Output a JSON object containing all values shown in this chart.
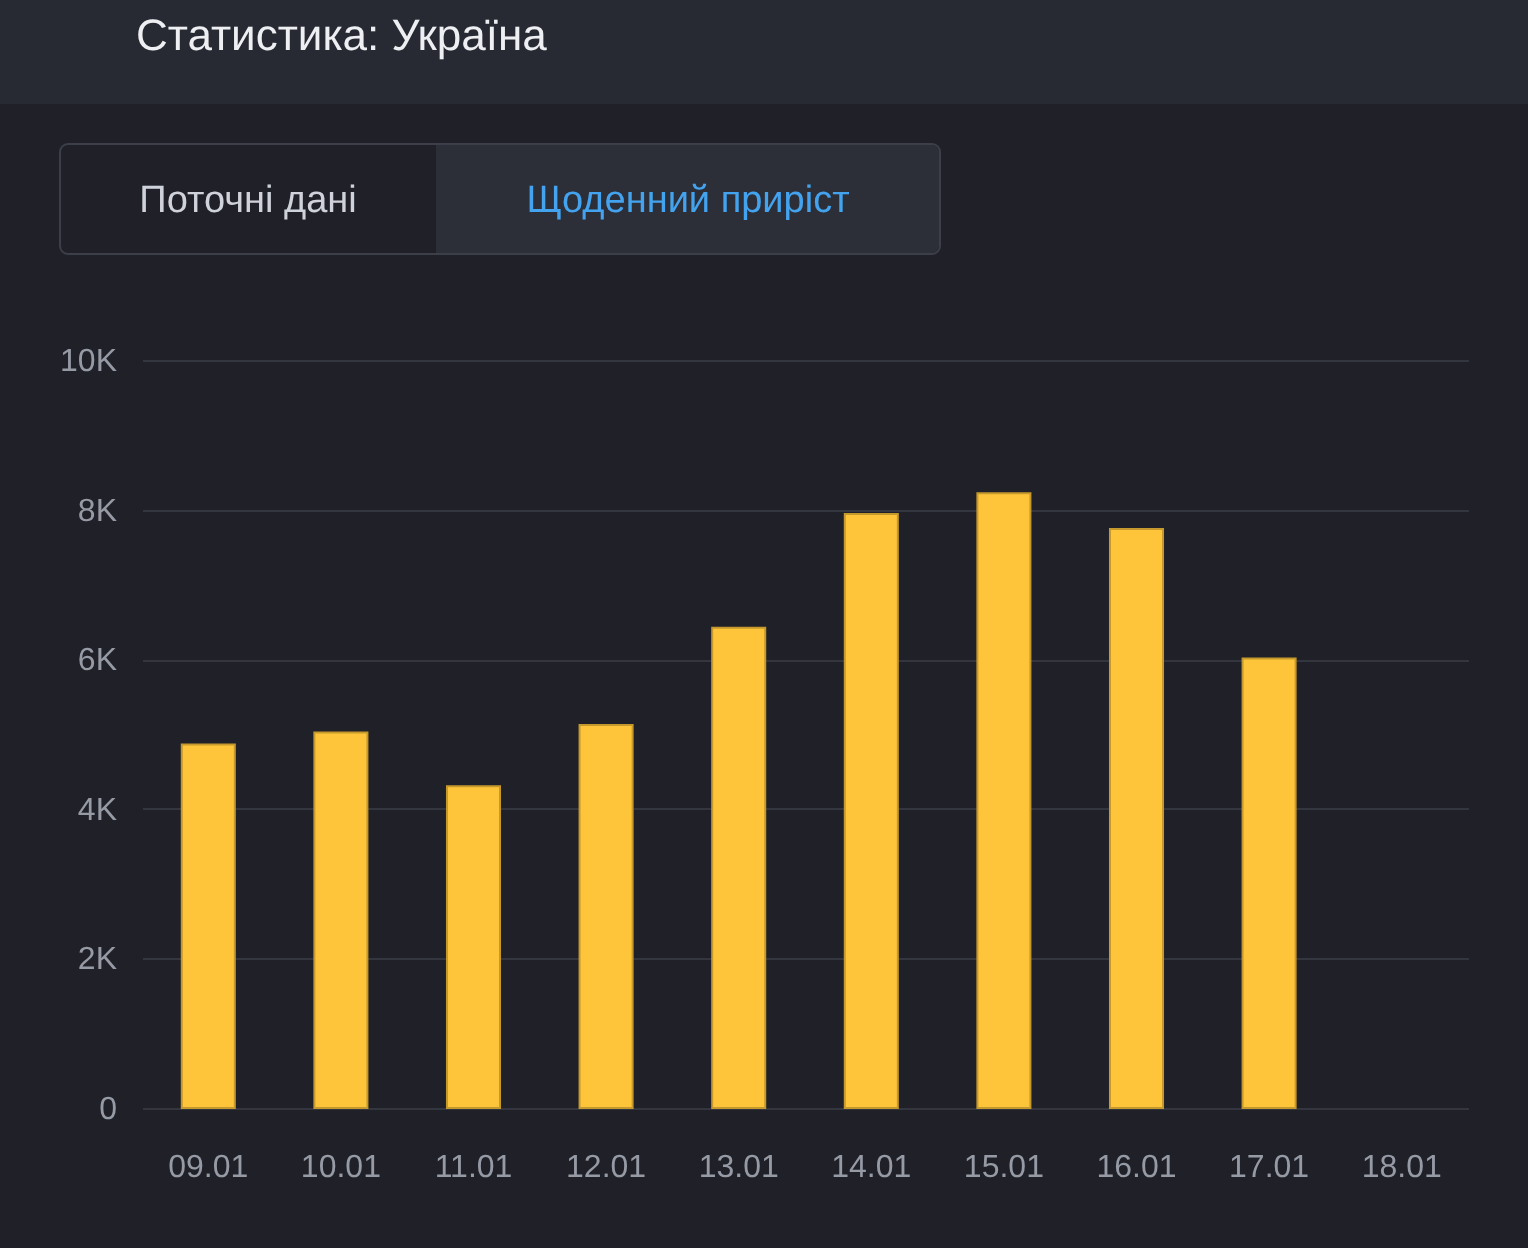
{
  "chart_data": {
    "type": "bar",
    "title": "Статистика: Україна",
    "annotations": [
      "Поточні дані",
      "Щоденний приріст"
    ],
    "categories": [
      "09.01",
      "10.01",
      "11.01",
      "12.01",
      "13.01",
      "14.01",
      "15.01",
      "16.01",
      "17.01",
      "18.01"
    ],
    "values": [
      4860,
      5020,
      4300,
      5120,
      6420,
      7940,
      8220,
      7740,
      6010,
      null
    ],
    "color": "#ffc53a",
    "ylim": [
      0,
      10000
    ],
    "yticks": [
      0,
      {
        "value": 2000,
        "label": "2K"
      },
      {
        "value": 4000,
        "label": "4K"
      },
      {
        "value": 6000,
        "label": "6K"
      },
      {
        "value": 8000,
        "label": "8K"
      },
      {
        "value": 10000,
        "label": "10K"
      }
    ],
    "grid": "y"
  }
}
